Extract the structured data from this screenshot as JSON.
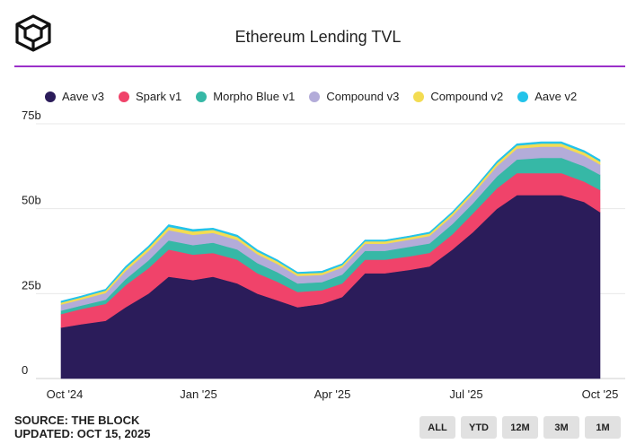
{
  "header": {
    "title": "Ethereum Lending TVL"
  },
  "footer": {
    "source": "SOURCE: THE BLOCK",
    "updated": "UPDATED: OCT 15, 2025"
  },
  "range_buttons": [
    "ALL",
    "YTD",
    "12M",
    "3M",
    "1M"
  ],
  "chart_data": {
    "type": "area",
    "title": "Ethereum Lending TVL",
    "stacked": true,
    "legend_position": "top",
    "grid": true,
    "x_ticks": [
      "Oct '24",
      "Jan '25",
      "Apr '25",
      "Jul '25",
      "Oct '25"
    ],
    "y_ticks": [
      "0",
      "25b",
      "50b",
      "75b"
    ],
    "ylim": [
      0,
      75
    ],
    "x": [
      "2024-10-01",
      "2024-10-15",
      "2024-11-01",
      "2024-11-15",
      "2024-12-01",
      "2024-12-15",
      "2025-01-01",
      "2025-01-15",
      "2025-02-01",
      "2025-02-15",
      "2025-03-01",
      "2025-03-15",
      "2025-04-01",
      "2025-04-15",
      "2025-05-01",
      "2025-05-15",
      "2025-06-01",
      "2025-06-15",
      "2025-07-01",
      "2025-07-15",
      "2025-08-01",
      "2025-08-15",
      "2025-09-01",
      "2025-09-15",
      "2025-10-01",
      "2025-10-12"
    ],
    "series": [
      {
        "name": "Aave v3",
        "color": "#2b1c5a",
        "values": [
          15,
          16,
          17,
          21,
          25,
          30,
          29,
          30,
          28,
          25,
          23,
          21,
          22,
          24,
          31,
          31,
          32,
          33,
          38,
          43,
          50,
          54,
          54,
          54,
          52,
          49
        ]
      },
      {
        "name": "Spark v1",
        "color": "#f0436a",
        "values": [
          4,
          4.5,
          5,
          6.5,
          7.5,
          8,
          7.5,
          7,
          7,
          6,
          5.5,
          4.5,
          4,
          4,
          4,
          4,
          4,
          4,
          4.5,
          5.5,
          6,
          6.5,
          6.5,
          6.5,
          6,
          6.5
        ]
      },
      {
        "name": "Morpho Blue v1",
        "color": "#36b8a6",
        "values": [
          1,
          1,
          1.2,
          1.8,
          2.3,
          2.7,
          2.8,
          3,
          3,
          3,
          2.8,
          2.5,
          2.4,
          2.6,
          2.6,
          2.6,
          2.8,
          2.8,
          3,
          3,
          3.5,
          4,
          4.5,
          4.5,
          4.5,
          4.5
        ]
      },
      {
        "name": "Compound v3",
        "color": "#b3acd9",
        "values": [
          1.8,
          1.8,
          2,
          2.4,
          2.8,
          3,
          3,
          2.9,
          2.8,
          2.6,
          2.4,
          2.2,
          2.1,
          2.1,
          2.1,
          2.1,
          2.1,
          2.2,
          2.4,
          2.7,
          3,
          3.2,
          3.3,
          3.3,
          3.2,
          3
        ]
      },
      {
        "name": "Compound v2",
        "color": "#f3dc52",
        "values": [
          0.6,
          0.6,
          0.7,
          0.8,
          0.9,
          1,
          1,
          0.9,
          0.9,
          0.8,
          0.8,
          0.7,
          0.7,
          0.7,
          0.7,
          0.7,
          0.7,
          0.7,
          0.8,
          0.8,
          0.9,
          0.9,
          0.9,
          0.9,
          0.9,
          0.9
        ]
      },
      {
        "name": "Aave v2",
        "color": "#23c3ea",
        "values": [
          0.4,
          0.4,
          0.4,
          0.5,
          0.5,
          0.6,
          0.6,
          0.5,
          0.5,
          0.5,
          0.4,
          0.4,
          0.4,
          0.4,
          0.4,
          0.4,
          0.4,
          0.4,
          0.4,
          0.4,
          0.5,
          0.5,
          0.5,
          0.5,
          0.5,
          0.5
        ]
      }
    ]
  }
}
